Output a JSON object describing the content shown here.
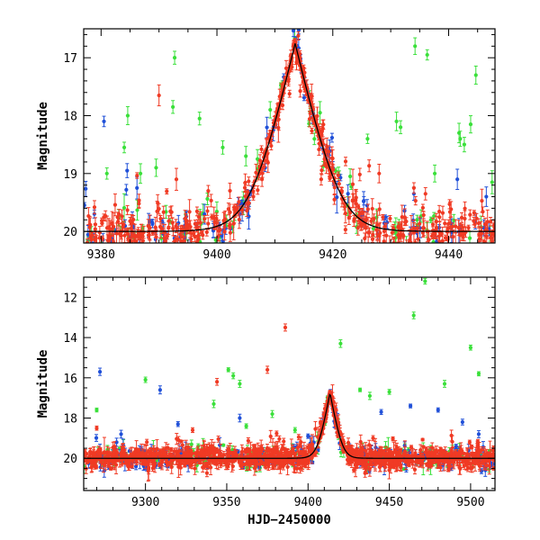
{
  "colors": {
    "blue": "#2050d8",
    "green": "#3ae03a",
    "red": "#f03a24",
    "model": "#000000",
    "frame": "#000000"
  },
  "chart_data": [
    {
      "id": "top",
      "type": "scatter",
      "title": "",
      "xlabel": "",
      "ylabel": "Magnitude",
      "xlim": [
        9377,
        9448
      ],
      "ylim": [
        20.2,
        16.5
      ],
      "y_inverted": true,
      "xticks": [
        9380,
        9400,
        9420,
        9440
      ],
      "xtick_labels": [
        "9380",
        "9400",
        "9420",
        "9440"
      ],
      "yticks": [
        17,
        18,
        19,
        20
      ],
      "ytick_labels": [
        "17",
        "18",
        "19",
        "20"
      ],
      "model_curve": {
        "baseline": 20.0,
        "peak_x": 9413.5,
        "peak_mag": 16.75,
        "width_days": 2.5
      },
      "series": [
        {
          "name": "blue",
          "outliers": [
            [
              9380.5,
              18.1
            ],
            [
              9384.5,
              18.95
            ],
            [
              9386.2,
              19.25
            ],
            [
              9413.5,
              16.72
            ],
            [
              9434.0,
              19.35
            ],
            [
              9441.5,
              19.1
            ],
            [
              9446.5,
              19.4
            ]
          ]
        },
        {
          "name": "green",
          "outliers": [
            [
              9381.0,
              19.0
            ],
            [
              9384.0,
              18.55
            ],
            [
              9384.6,
              18.0
            ],
            [
              9386.8,
              19.0
            ],
            [
              9389.5,
              18.9
            ],
            [
              9392.4,
              17.85
            ],
            [
              9392.7,
              17.0
            ],
            [
              9397.0,
              18.05
            ],
            [
              9401.0,
              18.55
            ],
            [
              9405.0,
              18.7
            ],
            [
              9407.0,
              18.75
            ],
            [
              9409.2,
              17.9
            ],
            [
              9416.0,
              17.75
            ],
            [
              9417.8,
              17.95
            ],
            [
              9423.0,
              19.05
            ],
            [
              9426.0,
              18.4
            ],
            [
              9431.0,
              18.1
            ],
            [
              9431.7,
              18.2
            ],
            [
              9434.2,
              16.8
            ],
            [
              9436.3,
              16.95
            ],
            [
              9437.6,
              19.0
            ],
            [
              9441.8,
              18.3
            ],
            [
              9442.0,
              18.4
            ],
            [
              9442.7,
              18.5
            ],
            [
              9443.8,
              18.15
            ],
            [
              9444.7,
              17.3
            ],
            [
              9447.5,
              19.15
            ]
          ]
        },
        {
          "name": "red",
          "outliers": [
            [
              9390.0,
              17.65
            ],
            [
              9393.0,
              19.1
            ],
            [
              9398.5,
              19.3
            ],
            [
              9418.0,
              19.1
            ],
            [
              9428.0,
              19.0
            ],
            [
              9434.0,
              19.25
            ],
            [
              9436.0,
              19.35
            ]
          ]
        }
      ]
    },
    {
      "id": "bottom",
      "type": "scatter",
      "title": "",
      "xlabel": "HJD−2450000",
      "ylabel": "Magnitude",
      "xlim": [
        9262,
        9515
      ],
      "ylim": [
        21.6,
        11.0
      ],
      "y_inverted": true,
      "xticks": [
        9300,
        9350,
        9400,
        9450,
        9500
      ],
      "xtick_labels": [
        "9300",
        "9350",
        "9400",
        "9450",
        "9500"
      ],
      "yticks": [
        12,
        14,
        16,
        18,
        20
      ],
      "ytick_labels": [
        "12",
        "14",
        "16",
        "18",
        "20"
      ],
      "model_curve": {
        "baseline": 20.0,
        "peak_x": 9413.5,
        "peak_mag": 16.75,
        "width_days": 2.5
      },
      "series": [
        {
          "name": "blue",
          "outliers": [
            [
              9272.0,
              15.7
            ],
            [
              9285.0,
              18.8
            ],
            [
              9309.0,
              16.6
            ],
            [
              9320.0,
              18.3
            ],
            [
              9358.0,
              18.0
            ],
            [
              9400.0,
              18.9
            ],
            [
              9445.0,
              17.7
            ],
            [
              9463.0,
              17.4
            ],
            [
              9480.0,
              17.6
            ],
            [
              9495.0,
              18.2
            ],
            [
              9505.0,
              18.8
            ]
          ]
        },
        {
          "name": "green",
          "outliers": [
            [
              9270.0,
              17.6
            ],
            [
              9300.0,
              16.1
            ],
            [
              9342.0,
              17.3
            ],
            [
              9351.0,
              15.6
            ],
            [
              9354.0,
              15.9
            ],
            [
              9358.0,
              16.3
            ],
            [
              9362.0,
              18.4
            ],
            [
              9378.0,
              17.8
            ],
            [
              9392.0,
              18.6
            ],
            [
              9412.0,
              17.0
            ],
            [
              9420.0,
              14.3
            ],
            [
              9432.0,
              16.6
            ],
            [
              9438.0,
              16.9
            ],
            [
              9450.0,
              16.7
            ],
            [
              9465.0,
              12.9
            ],
            [
              9472.0,
              11.2
            ],
            [
              9484.0,
              16.3
            ],
            [
              9500.0,
              14.5
            ],
            [
              9505.0,
              15.8
            ]
          ]
        },
        {
          "name": "red",
          "outliers": [
            [
              9270.0,
              18.5
            ],
            [
              9286.0,
              19.5
            ],
            [
              9329.0,
              18.6
            ],
            [
              9344.0,
              16.2
            ],
            [
              9375.0,
              15.6
            ],
            [
              9386.0,
              13.5
            ],
            [
              9405.0,
              19.7
            ],
            [
              9440.0,
              19.0
            ]
          ]
        }
      ]
    }
  ]
}
